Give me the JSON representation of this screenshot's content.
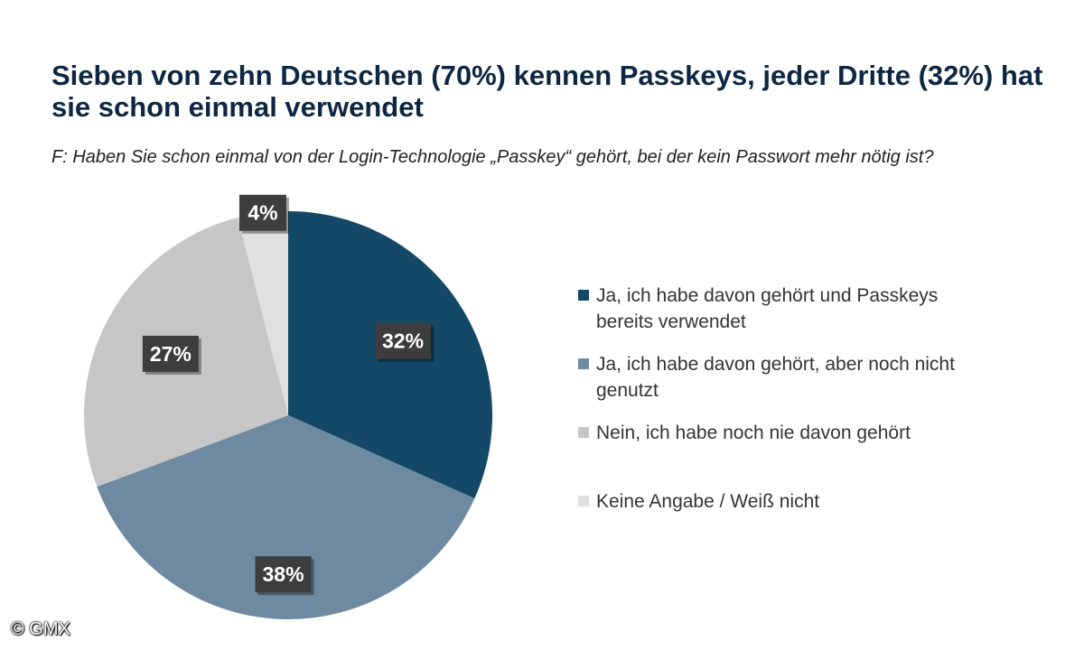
{
  "chart_data": {
    "type": "pie",
    "title": "Sieben von zehn Deutschen (70%) kennen Passkeys, jeder Dritte (32%) hat sie schon einmal verwendet",
    "subtitle": "F: Haben Sie schon einmal von der Login-Technologie „Passkey“ gehört, bei der kein Passwort mehr nötig ist?",
    "slices": [
      {
        "label": "Ja, ich habe davon gehört und Passkeys bereits verwendet",
        "value": 32,
        "display": "32%",
        "color": "#134866"
      },
      {
        "label": "Ja, ich habe davon gehört, aber noch nicht genutzt",
        "value": 38,
        "display": "38%",
        "color": "#6e8aa1"
      },
      {
        "label": "Nein, ich habe noch nie davon gehört",
        "value": 27,
        "display": "27%",
        "color": "#c6c6c6"
      },
      {
        "label": "Keine Angabe / Weiß nicht",
        "value": 4,
        "display": "4%",
        "color": "#e0e0e0"
      }
    ],
    "legend_position": "right"
  },
  "copyright": "© GMX"
}
